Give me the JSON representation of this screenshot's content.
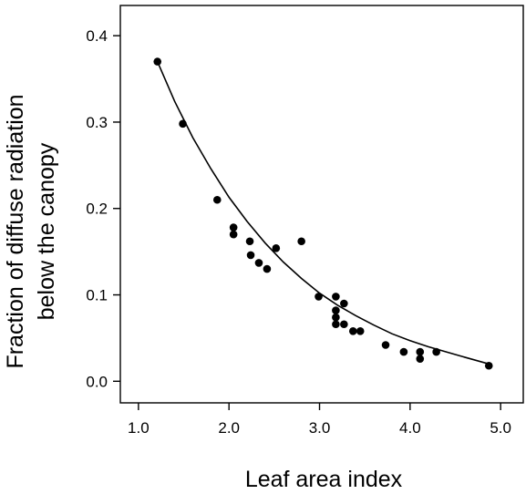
{
  "chart_data": {
    "type": "scatter",
    "xlabel": "Leaf area index",
    "ylabel_lines": [
      "Fraction of diffuse radiation",
      "below the canopy"
    ],
    "xlim": [
      0.8,
      5.25
    ],
    "ylim": [
      -0.025,
      0.435
    ],
    "x_ticks": [
      1.0,
      2.0,
      3.0,
      4.0,
      5.0
    ],
    "x_tick_labels": [
      "1.0",
      "2.0",
      "3.0",
      "4.0",
      "5.0"
    ],
    "y_ticks": [
      0.0,
      0.1,
      0.2,
      0.3,
      0.4
    ],
    "y_tick_labels": [
      "0.0",
      "0.1",
      "0.2",
      "0.3",
      "0.4"
    ],
    "grid": false,
    "points": [
      {
        "x": 1.21,
        "y": 0.37
      },
      {
        "x": 1.49,
        "y": 0.298
      },
      {
        "x": 1.87,
        "y": 0.21
      },
      {
        "x": 2.05,
        "y": 0.178
      },
      {
        "x": 2.05,
        "y": 0.17
      },
      {
        "x": 2.23,
        "y": 0.162
      },
      {
        "x": 2.24,
        "y": 0.146
      },
      {
        "x": 2.33,
        "y": 0.137
      },
      {
        "x": 2.42,
        "y": 0.13
      },
      {
        "x": 2.52,
        "y": 0.154
      },
      {
        "x": 2.8,
        "y": 0.162
      },
      {
        "x": 2.99,
        "y": 0.098
      },
      {
        "x": 3.18,
        "y": 0.098
      },
      {
        "x": 3.27,
        "y": 0.09
      },
      {
        "x": 3.18,
        "y": 0.082
      },
      {
        "x": 3.18,
        "y": 0.074
      },
      {
        "x": 3.18,
        "y": 0.066
      },
      {
        "x": 3.27,
        "y": 0.066
      },
      {
        "x": 3.37,
        "y": 0.058
      },
      {
        "x": 3.45,
        "y": 0.058
      },
      {
        "x": 3.73,
        "y": 0.042
      },
      {
        "x": 3.93,
        "y": 0.034
      },
      {
        "x": 4.11,
        "y": 0.034
      },
      {
        "x": 4.11,
        "y": 0.026
      },
      {
        "x": 4.29,
        "y": 0.034
      },
      {
        "x": 4.87,
        "y": 0.018
      }
    ],
    "fit_curve": [
      {
        "x": 1.21,
        "y": 0.37
      },
      {
        "x": 1.4,
        "y": 0.324
      },
      {
        "x": 1.6,
        "y": 0.282
      },
      {
        "x": 1.8,
        "y": 0.246
      },
      {
        "x": 2.0,
        "y": 0.213
      },
      {
        "x": 2.2,
        "y": 0.185
      },
      {
        "x": 2.4,
        "y": 0.16
      },
      {
        "x": 2.6,
        "y": 0.138
      },
      {
        "x": 2.8,
        "y": 0.119
      },
      {
        "x": 3.0,
        "y": 0.102
      },
      {
        "x": 3.2,
        "y": 0.088
      },
      {
        "x": 3.4,
        "y": 0.076
      },
      {
        "x": 3.6,
        "y": 0.065
      },
      {
        "x": 3.8,
        "y": 0.055
      },
      {
        "x": 4.0,
        "y": 0.047
      },
      {
        "x": 4.2,
        "y": 0.04
      },
      {
        "x": 4.4,
        "y": 0.034
      },
      {
        "x": 4.6,
        "y": 0.028
      },
      {
        "x": 4.87,
        "y": 0.02
      }
    ],
    "colors": {
      "marker": "#000000",
      "curve": "#000000",
      "axis": "#000000"
    }
  }
}
